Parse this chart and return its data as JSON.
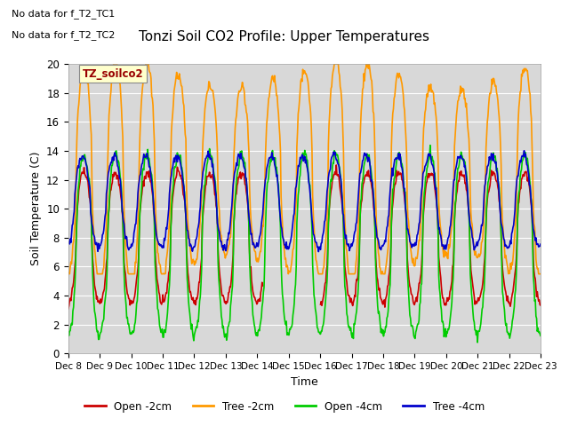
{
  "title": "Tonzi Soil CO2 Profile: Upper Temperatures",
  "xlabel": "Time",
  "ylabel": "Soil Temperature (C)",
  "ylim": [
    0,
    20
  ],
  "no_data_text": [
    "No data for f_T2_TC1",
    "No data for f_T2_TC2"
  ],
  "legend_label_text": "TZ_soilco2",
  "legend_entries": [
    "Open -2cm",
    "Tree -2cm",
    "Open -4cm",
    "Tree -4cm"
  ],
  "legend_colors": [
    "#cc0000",
    "#ff9900",
    "#00cc00",
    "#0000cc"
  ],
  "xtick_labels": [
    "Dec 8",
    "Dec 9",
    "Dec 10",
    "Dec 11",
    "Dec 12",
    "Dec 13",
    "Dec 14",
    "Dec 15",
    "Dec 16",
    "Dec 17",
    "Dec 18",
    "Dec 19",
    "Dec 20",
    "Dec 21",
    "Dec 22",
    "Dec 23"
  ],
  "plot_bg_color": "#d8d8d8",
  "grid_color": "#ffffff",
  "line_width": 1.2
}
